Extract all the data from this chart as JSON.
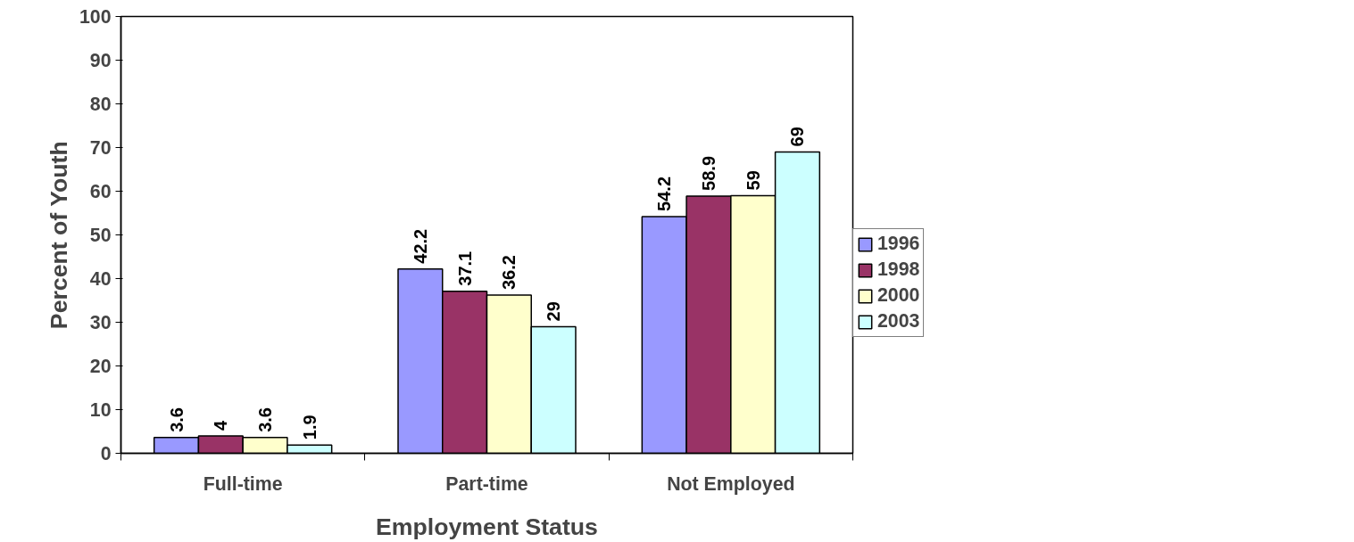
{
  "chart_data": {
    "type": "bar",
    "xlabel": "Employment Status",
    "ylabel": "Percent of Youth",
    "categories": [
      "Full-time",
      "Part-time",
      "Not Employed"
    ],
    "series": [
      {
        "name": "1996",
        "color": "#9999ff",
        "values": [
          3.6,
          42.2,
          54.2
        ]
      },
      {
        "name": "1998",
        "color": "#993366",
        "values": [
          4,
          37.1,
          58.9
        ]
      },
      {
        "name": "2000",
        "color": "#ffffcc",
        "values": [
          3.6,
          36.2,
          59
        ]
      },
      {
        "name": "2003",
        "color": "#ccffff",
        "values": [
          1.9,
          29,
          69
        ]
      }
    ],
    "ylim": [
      0,
      100
    ],
    "yticks": [
      0,
      10,
      20,
      30,
      40,
      50,
      60,
      70,
      80,
      90,
      100
    ],
    "data_labels": true,
    "grid": false,
    "legend": "right"
  }
}
